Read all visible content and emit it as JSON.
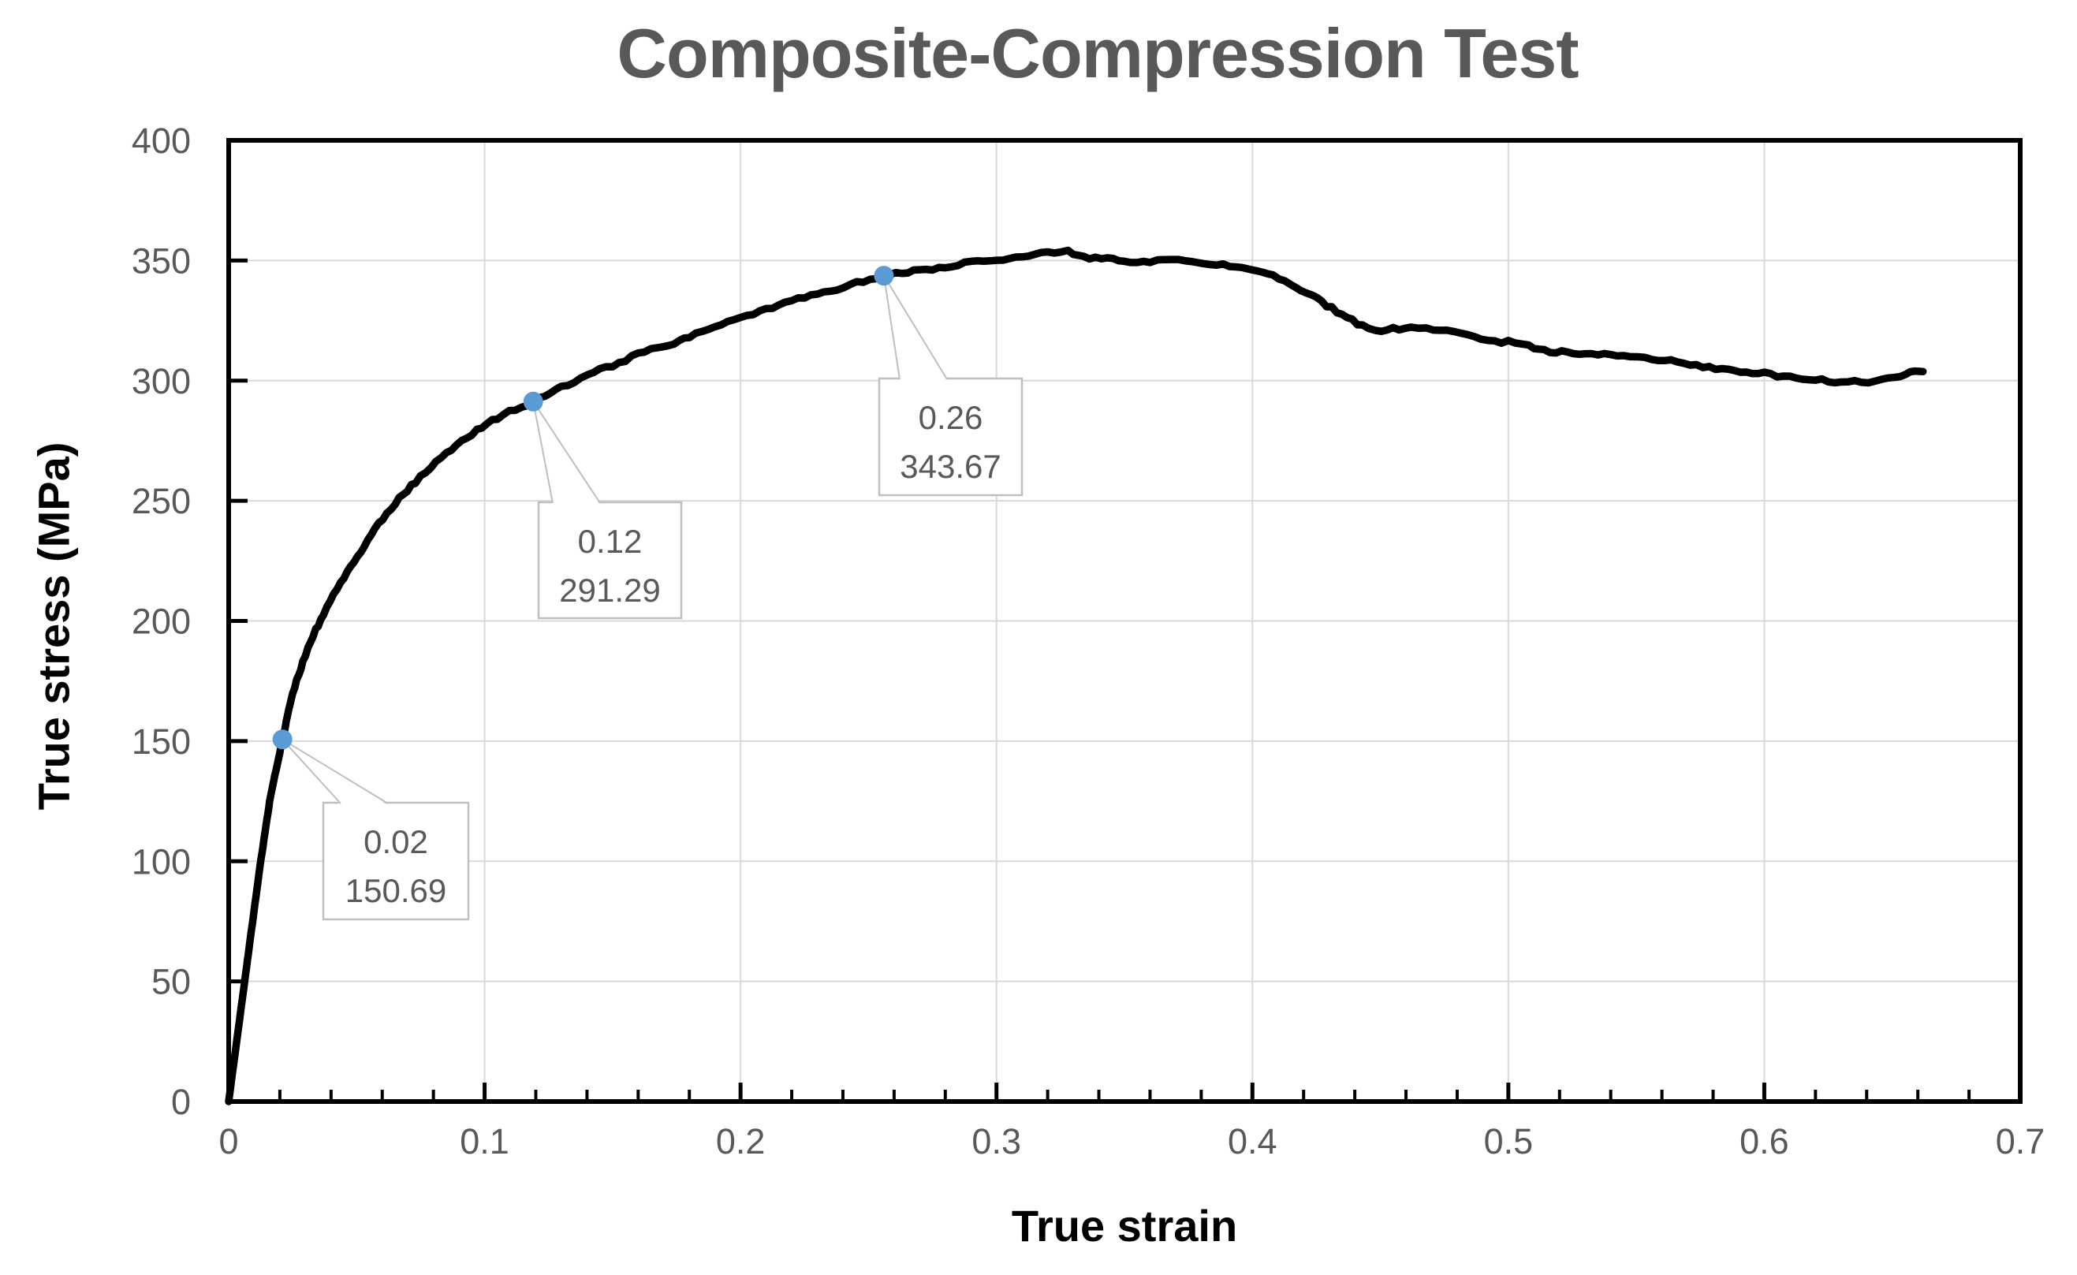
{
  "chart_data": {
    "type": "line",
    "title": "Composite-Compression Test",
    "xlabel": "True strain",
    "ylabel": "True stress (MPa)",
    "xlim": [
      0,
      0.7
    ],
    "ylim": [
      0,
      400
    ],
    "x_major_step": 0.1,
    "x_minor_step": 0.02,
    "y_major_step": 50,
    "grid": true,
    "legend": "none",
    "x_ticks": [
      "0",
      "0.1",
      "0.2",
      "0.3",
      "0.4",
      "0.5",
      "0.6",
      "0.7"
    ],
    "y_ticks": [
      "0",
      "50",
      "100",
      "150",
      "200",
      "250",
      "300",
      "350",
      "400"
    ],
    "colors": {
      "curve": "#000000",
      "marker": "#5B9BD5",
      "grid": "#D9D9D9",
      "axis_line": "#000000",
      "tick_label": "#595959",
      "title": "#595959",
      "axis_title": "#000000",
      "callout_border": "#BFBFBF",
      "callout_fill": "#FFFFFF",
      "callout_text": "#595959",
      "background": "#FFFFFF"
    },
    "series": [
      {
        "name": "compression-curve",
        "points": [
          [
            0,
            0
          ],
          [
            0.004,
            32
          ],
          [
            0.008,
            64
          ],
          [
            0.012,
            96
          ],
          [
            0.016,
            125
          ],
          [
            0.021,
            150.69
          ],
          [
            0.025,
            170
          ],
          [
            0.029,
            183
          ],
          [
            0.033,
            194
          ],
          [
            0.037,
            203
          ],
          [
            0.041,
            211
          ],
          [
            0.049,
            225
          ],
          [
            0.057,
            238
          ],
          [
            0.065,
            249
          ],
          [
            0.073,
            258
          ],
          [
            0.081,
            266
          ],
          [
            0.089,
            273
          ],
          [
            0.097,
            279.5
          ],
          [
            0.105,
            284.5
          ],
          [
            0.112,
            288
          ],
          [
            0.119,
            291.29
          ],
          [
            0.13,
            297
          ],
          [
            0.14,
            302
          ],
          [
            0.15,
            306.5
          ],
          [
            0.16,
            311
          ],
          [
            0.165,
            313
          ],
          [
            0.172,
            314.5
          ],
          [
            0.18,
            318.5
          ],
          [
            0.19,
            322.5
          ],
          [
            0.2,
            326
          ],
          [
            0.21,
            329.5
          ],
          [
            0.22,
            333
          ],
          [
            0.23,
            336
          ],
          [
            0.24,
            339
          ],
          [
            0.248,
            341.5
          ],
          [
            0.256,
            343.67
          ],
          [
            0.27,
            346
          ],
          [
            0.28,
            347.5
          ],
          [
            0.29,
            349
          ],
          [
            0.3,
            350.5
          ],
          [
            0.31,
            352
          ],
          [
            0.32,
            353.5
          ],
          [
            0.328,
            354
          ],
          [
            0.334,
            351.5
          ],
          [
            0.341,
            350.5
          ],
          [
            0.35,
            350
          ],
          [
            0.36,
            349.5
          ],
          [
            0.366,
            350
          ],
          [
            0.376,
            349.5
          ],
          [
            0.386,
            348.5
          ],
          [
            0.396,
            347
          ],
          [
            0.402,
            345.5
          ],
          [
            0.408,
            343.5
          ],
          [
            0.415,
            340
          ],
          [
            0.425,
            334
          ],
          [
            0.435,
            327.5
          ],
          [
            0.443,
            322.5
          ],
          [
            0.448,
            320.5
          ],
          [
            0.455,
            321.5
          ],
          [
            0.462,
            322.5
          ],
          [
            0.468,
            322
          ],
          [
            0.476,
            320.5
          ],
          [
            0.484,
            318.5
          ],
          [
            0.492,
            317
          ],
          [
            0.5,
            316
          ],
          [
            0.508,
            314.5
          ],
          [
            0.514,
            312.5
          ],
          [
            0.53,
            311.5
          ],
          [
            0.545,
            310.5
          ],
          [
            0.556,
            309.5
          ],
          [
            0.566,
            308
          ],
          [
            0.576,
            306
          ],
          [
            0.586,
            304.5
          ],
          [
            0.6,
            303
          ],
          [
            0.61,
            301.5
          ],
          [
            0.62,
            300.5
          ],
          [
            0.63,
            299.5
          ],
          [
            0.638,
            299.3
          ],
          [
            0.646,
            300.5
          ],
          [
            0.653,
            302
          ],
          [
            0.659,
            303.5
          ],
          [
            0.662,
            303.8
          ]
        ]
      }
    ],
    "labeled_points": [
      {
        "x": 0.021,
        "y": 150.69,
        "label_lines": [
          "0.02",
          "150.69"
        ]
      },
      {
        "x": 0.119,
        "y": 291.29,
        "label_lines": [
          "0.12",
          "291.29"
        ]
      },
      {
        "x": 0.256,
        "y": 343.67,
        "label_lines": [
          "0.26",
          "343.67"
        ]
      }
    ]
  }
}
